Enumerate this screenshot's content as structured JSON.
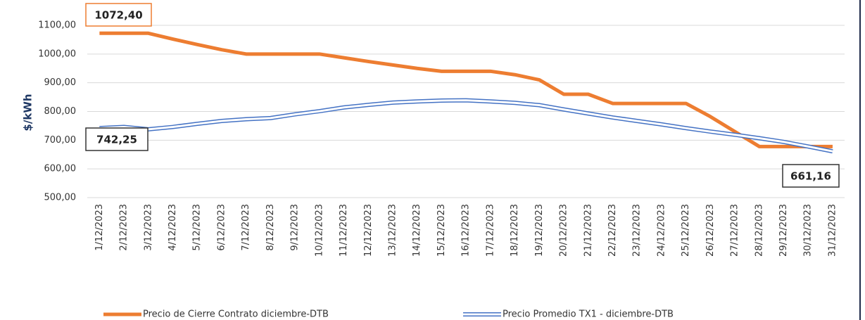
{
  "chart_data": {
    "type": "line",
    "y_label": "$/kWh",
    "categories": [
      "1/12/2023",
      "2/12/2023",
      "3/12/2023",
      "4/12/2023",
      "5/12/2023",
      "6/12/2023",
      "7/12/2023",
      "8/12/2023",
      "9/12/2023",
      "10/12/2023",
      "11/12/2023",
      "12/12/2023",
      "13/12/2023",
      "14/12/2023",
      "15/12/2023",
      "16/12/2023",
      "17/12/2023",
      "18/12/2023",
      "19/12/2023",
      "20/12/2023",
      "21/12/2023",
      "22/12/2023",
      "23/12/2023",
      "24/12/2023",
      "25/12/2023",
      "26/12/2023",
      "27/12/2023",
      "28/12/2023",
      "29/12/2023",
      "30/12/2023",
      "31/12/2023"
    ],
    "series": [
      {
        "name": "Precio de Cierre Contrato diciembre-DTB",
        "color": "#ed7d31",
        "values": [
          1072.4,
          1072.4,
          1072.4,
          1052,
          1033,
          1015,
          1000,
          1000,
          1000,
          1000,
          987,
          974,
          962,
          950,
          940,
          940,
          940,
          928,
          910,
          860,
          860,
          828,
          828,
          828,
          828,
          782,
          730,
          678,
          678,
          678,
          678
        ],
        "value_labels": [
          "1072,40",
          null,
          null,
          null,
          null,
          null,
          null,
          null,
          null,
          null,
          null,
          null,
          null,
          null,
          null,
          null,
          null,
          null,
          null,
          null,
          null,
          null,
          null,
          null,
          null,
          null,
          null,
          null,
          null,
          null,
          null
        ]
      },
      {
        "name": "Precio Promedio TX1 - diciembre-DTB",
        "color": "#4472c4",
        "values": [
          742.25,
          746,
          738,
          746,
          757,
          767,
          773,
          777,
          790,
          801,
          814,
          823,
          831,
          835,
          838,
          839,
          835,
          830,
          822,
          807,
          793,
          779,
          767,
          755,
          742,
          730,
          719,
          707,
          694,
          678,
          661.16
        ],
        "value_labels": [
          "742,25",
          null,
          null,
          null,
          null,
          null,
          null,
          null,
          null,
          null,
          null,
          null,
          null,
          null,
          null,
          null,
          null,
          null,
          null,
          null,
          null,
          null,
          null,
          null,
          null,
          null,
          null,
          null,
          null,
          null,
          "661,16"
        ]
      }
    ],
    "ylim": [
      500,
      1100
    ],
    "yticks": [
      {
        "value": 500,
        "label": "500,00"
      },
      {
        "value": 600,
        "label": "600,00"
      },
      {
        "value": 700,
        "label": "700,00"
      },
      {
        "value": 800,
        "label": "800,00"
      },
      {
        "value": 900,
        "label": "900,00"
      },
      {
        "value": 1000,
        "label": "1000,00"
      },
      {
        "value": 1100,
        "label": "1100,00"
      }
    ],
    "grid": true
  }
}
